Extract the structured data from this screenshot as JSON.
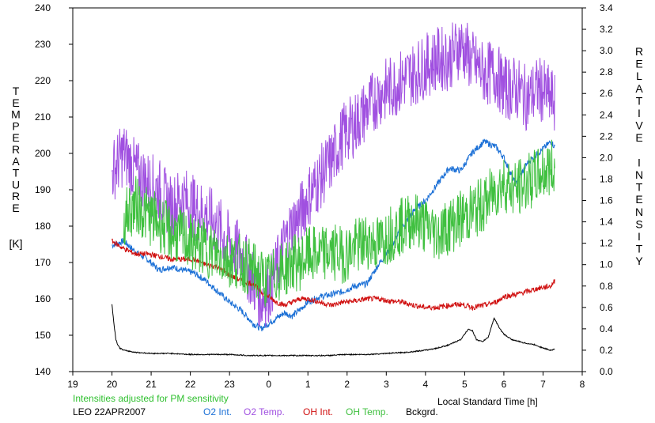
{
  "chart_data": {
    "type": "line",
    "title": "",
    "ylabel_left_letters": [
      "T",
      "E",
      "M",
      "P",
      "E",
      "R",
      "A",
      "T",
      "U",
      "R",
      "E"
    ],
    "ylabel_left_unit": "[K]",
    "ylabel_right_letters": [
      "R",
      "E",
      "L",
      "A",
      "T",
      "I",
      "V",
      "E",
      "",
      "I",
      "N",
      "T",
      "E",
      "N",
      "S",
      "I",
      "T",
      "Y"
    ],
    "xlabel": "Local Standard Time [h]",
    "note": "Intensities adjusted for PM sensitivity",
    "station_date": "LEO 22APR2007",
    "xlim": [
      19,
      32
    ],
    "ylim_left": [
      140,
      240
    ],
    "ylim_right": [
      0.0,
      3.4
    ],
    "x_ticks": [
      19,
      20,
      21,
      22,
      23,
      24,
      25,
      26,
      27,
      28,
      29,
      30,
      31,
      32
    ],
    "x_tick_labels": [
      "19",
      "20",
      "21",
      "22",
      "23",
      "0",
      "1",
      "2",
      "3",
      "4",
      "5",
      "6",
      "7",
      "8"
    ],
    "y_left_ticks": [
      "140",
      "150",
      "160",
      "170",
      "180",
      "190",
      "200",
      "210",
      "220",
      "230",
      "240"
    ],
    "y_right_ticks": [
      "0.0",
      "0.2",
      "0.4",
      "0.6",
      "0.8",
      "1.0",
      "1.2",
      "1.4",
      "1.6",
      "1.8",
      "2.0",
      "2.2",
      "2.4",
      "2.6",
      "2.8",
      "3.0",
      "3.2",
      "3.4"
    ],
    "grid": false,
    "legend_position": "bottom",
    "series": [
      {
        "name": "O2 Int.",
        "axis": "right",
        "color": "#1a6fd6",
        "x": [
          20.0,
          20.3,
          20.6,
          20.9,
          21.2,
          21.5,
          21.8,
          22.1,
          22.4,
          22.7,
          23.0,
          23.3,
          23.6,
          23.8,
          24.0,
          24.2,
          24.4,
          24.6,
          24.8,
          25.0,
          25.3,
          25.6,
          25.9,
          26.2,
          26.5,
          26.8,
          27.1,
          27.4,
          27.7,
          28.0,
          28.3,
          28.6,
          28.9,
          29.2,
          29.5,
          29.8,
          30.0,
          30.3,
          30.6,
          30.9,
          31.2,
          31.3
        ],
        "values": [
          1.18,
          1.22,
          1.12,
          1.05,
          0.95,
          0.98,
          0.95,
          0.92,
          0.85,
          0.75,
          0.65,
          0.57,
          0.45,
          0.4,
          0.45,
          0.5,
          0.55,
          0.52,
          0.58,
          0.65,
          0.7,
          0.72,
          0.75,
          0.8,
          0.82,
          1.0,
          1.15,
          1.35,
          1.5,
          1.6,
          1.75,
          1.9,
          1.88,
          2.05,
          2.15,
          2.1,
          2.0,
          1.75,
          1.95,
          2.05,
          2.15,
          2.1
        ]
      },
      {
        "name": "O2 Temp.",
        "axis": "left",
        "color": "#a050e0",
        "x": [
          20.0,
          20.3,
          20.6,
          20.9,
          21.2,
          21.5,
          21.8,
          22.1,
          22.4,
          22.7,
          23.0,
          23.3,
          23.6,
          23.8,
          24.0,
          24.2,
          24.4,
          24.6,
          24.8,
          25.0,
          25.3,
          25.6,
          25.9,
          26.2,
          26.5,
          26.8,
          27.1,
          27.4,
          27.7,
          28.0,
          28.3,
          28.6,
          28.9,
          29.2,
          29.5,
          29.8,
          30.0,
          30.3,
          30.6,
          30.9,
          31.2,
          31.3
        ],
        "values": [
          195,
          200,
          195,
          192,
          190,
          185,
          188,
          185,
          183,
          180,
          175,
          172,
          165,
          160,
          162,
          168,
          175,
          180,
          183,
          188,
          193,
          198,
          205,
          208,
          212,
          216,
          218,
          220,
          222,
          224,
          226,
          226,
          230,
          225,
          222,
          222,
          218,
          218,
          215,
          218,
          215,
          214
        ]
      },
      {
        "name": "OH Int.",
        "axis": "right",
        "color": "#d01010",
        "x": [
          20.0,
          20.3,
          20.6,
          20.9,
          21.2,
          21.5,
          21.8,
          22.1,
          22.4,
          22.7,
          23.0,
          23.3,
          23.6,
          23.8,
          24.0,
          24.2,
          24.4,
          24.6,
          24.8,
          25.0,
          25.3,
          25.6,
          25.9,
          26.2,
          26.5,
          26.8,
          27.1,
          27.4,
          27.7,
          28.0,
          28.3,
          28.6,
          28.9,
          29.2,
          29.5,
          29.8,
          30.0,
          30.3,
          30.6,
          30.9,
          31.2,
          31.3
        ],
        "values": [
          1.22,
          1.15,
          1.1,
          1.1,
          1.08,
          1.05,
          1.05,
          1.05,
          1.0,
          0.98,
          0.9,
          0.85,
          0.82,
          0.75,
          0.7,
          0.65,
          0.62,
          0.65,
          0.68,
          0.68,
          0.65,
          0.62,
          0.65,
          0.66,
          0.68,
          0.68,
          0.66,
          0.65,
          0.62,
          0.6,
          0.6,
          0.62,
          0.63,
          0.6,
          0.62,
          0.65,
          0.7,
          0.72,
          0.75,
          0.78,
          0.8,
          0.85
        ]
      },
      {
        "name": "OH Temp.",
        "axis": "left",
        "color": "#40c040",
        "x": [
          20.3,
          20.6,
          20.9,
          21.2,
          21.5,
          21.8,
          22.1,
          22.4,
          22.7,
          23.0,
          23.3,
          23.6,
          23.8,
          24.0,
          24.2,
          24.4,
          24.6,
          24.8,
          25.0,
          25.3,
          25.6,
          25.9,
          26.2,
          26.5,
          26.8,
          27.1,
          27.4,
          27.7,
          28.0,
          28.3,
          28.6,
          28.9,
          29.2,
          29.5,
          29.8,
          30.0,
          30.3,
          30.6,
          30.9,
          31.2,
          31.3
        ],
        "values": [
          182,
          186,
          183,
          181,
          178,
          177,
          175,
          174,
          172,
          171,
          170,
          168,
          166,
          165,
          167,
          168,
          170,
          170,
          172,
          172,
          173,
          172,
          174,
          176,
          175,
          178,
          180,
          182,
          180,
          178,
          180,
          182,
          184,
          186,
          190,
          192,
          190,
          192,
          194,
          196,
          195
        ]
      },
      {
        "name": "Bckgrd.",
        "axis": "right",
        "color": "#000000",
        "x": [
          20.0,
          20.05,
          20.1,
          20.15,
          20.2,
          20.3,
          20.6,
          21.0,
          21.5,
          22.0,
          22.5,
          23.0,
          23.5,
          24.0,
          24.5,
          25.0,
          25.5,
          26.0,
          26.5,
          27.0,
          27.5,
          28.0,
          28.3,
          28.6,
          28.9,
          29.0,
          29.1,
          29.2,
          29.3,
          29.45,
          29.6,
          29.75,
          29.9,
          30.0,
          30.2,
          30.5,
          30.8,
          31.0,
          31.2,
          31.3
        ],
        "values": [
          0.63,
          0.45,
          0.3,
          0.25,
          0.22,
          0.2,
          0.18,
          0.17,
          0.17,
          0.16,
          0.16,
          0.16,
          0.15,
          0.15,
          0.15,
          0.15,
          0.15,
          0.16,
          0.16,
          0.17,
          0.18,
          0.2,
          0.22,
          0.25,
          0.3,
          0.35,
          0.4,
          0.38,
          0.3,
          0.28,
          0.32,
          0.5,
          0.4,
          0.35,
          0.3,
          0.27,
          0.25,
          0.22,
          0.2,
          0.21
        ]
      }
    ]
  }
}
